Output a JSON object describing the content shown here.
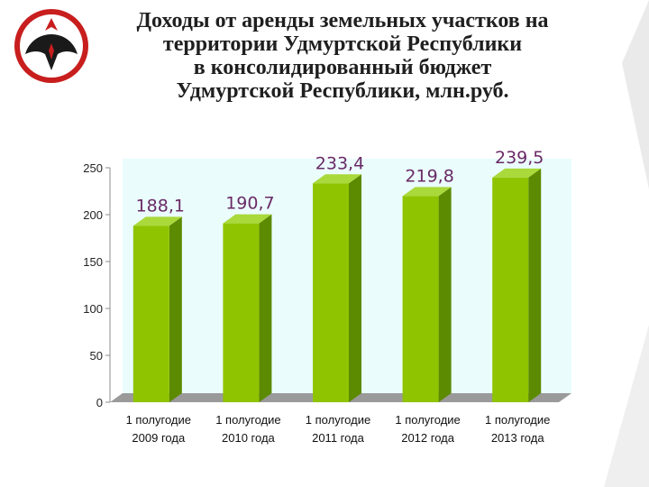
{
  "slide": {
    "title_lines": [
      "Доходы от аренды земельных участков на",
      "территории Удмуртской Республики",
      "в консолидированный бюджет",
      "Удмуртской Республики, млн.руб."
    ],
    "emblem_icon": "udmurtia-coat-of-arms-icon",
    "colors": {
      "bar_front": "#8fc400",
      "bar_side": "#5c8a00",
      "bar_top": "#a9d93a",
      "plot_bg": "#eafcfc",
      "data_label": "#6a2a66"
    }
  },
  "chart_data": {
    "type": "bar",
    "categories": [
      [
        "1 полугодие",
        "2009 года"
      ],
      [
        "1 полугодие",
        "2010 года"
      ],
      [
        "1 полугодие",
        "2011 года"
      ],
      [
        "1 полугодие",
        "2012 года"
      ],
      [
        "1 полугодие",
        "2013 года"
      ]
    ],
    "values": [
      188.1,
      190.7,
      233.4,
      219.8,
      239.5
    ],
    "data_labels": [
      "188,1",
      "190,7",
      "233,4",
      "219,8",
      "239,5"
    ],
    "y_ticks": [
      0,
      50,
      100,
      150,
      200,
      250
    ],
    "ylim": [
      0,
      250
    ],
    "title": "",
    "xlabel": "",
    "ylabel": "",
    "grid": false,
    "legend": "none",
    "style": "3d-bar"
  }
}
